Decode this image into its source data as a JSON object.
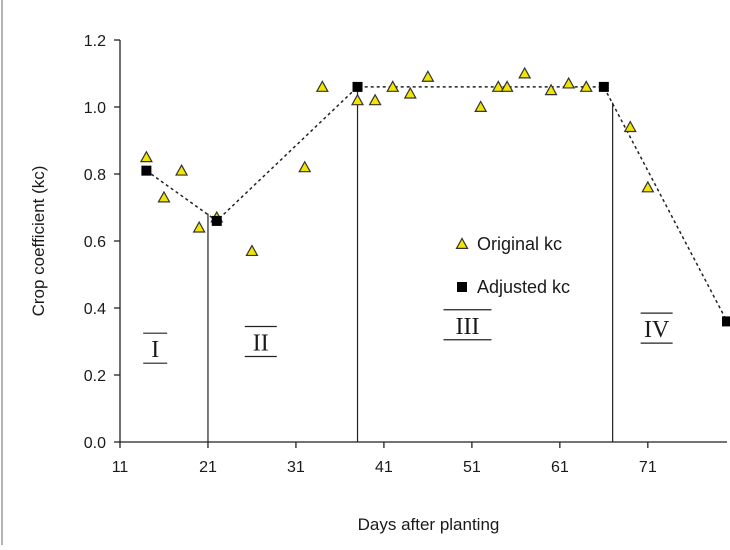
{
  "chart_data": {
    "type": "scatter",
    "title": "",
    "xlabel": "Days after planting",
    "ylabel": "Crop coefficient (kc)",
    "xlim": [
      11,
      80
    ],
    "ylim": [
      0,
      1.2
    ],
    "x_ticks": [
      11,
      21,
      31,
      41,
      51,
      61,
      71
    ],
    "x_tick_labels": [
      "11",
      "21",
      "31",
      "41",
      "51",
      "61",
      "71"
    ],
    "y_ticks": [
      0,
      0.2,
      0.4,
      0.6,
      0.8,
      1.0,
      1.2
    ],
    "y_tick_labels": [
      "0.0",
      "0.2",
      "0.4",
      "0.6",
      "0.8",
      "1.0",
      "1.2"
    ],
    "grid": false,
    "legend_position": "center-right",
    "series": [
      {
        "name": "Original kc",
        "marker": "triangle",
        "color": "#f2e600",
        "edge_color": "#333333",
        "points": [
          {
            "x": 14,
            "y": 0.85
          },
          {
            "x": 16,
            "y": 0.73
          },
          {
            "x": 18,
            "y": 0.81
          },
          {
            "x": 20,
            "y": 0.64
          },
          {
            "x": 22,
            "y": 0.67
          },
          {
            "x": 26,
            "y": 0.57
          },
          {
            "x": 32,
            "y": 0.82
          },
          {
            "x": 34,
            "y": 1.06
          },
          {
            "x": 38,
            "y": 1.02
          },
          {
            "x": 40,
            "y": 1.02
          },
          {
            "x": 42,
            "y": 1.06
          },
          {
            "x": 44,
            "y": 1.04
          },
          {
            "x": 46,
            "y": 1.09
          },
          {
            "x": 52,
            "y": 1.0
          },
          {
            "x": 54,
            "y": 1.06
          },
          {
            "x": 55,
            "y": 1.06
          },
          {
            "x": 57,
            "y": 1.1
          },
          {
            "x": 60,
            "y": 1.05
          },
          {
            "x": 62,
            "y": 1.07
          },
          {
            "x": 64,
            "y": 1.06
          },
          {
            "x": 69,
            "y": 0.94
          },
          {
            "x": 71,
            "y": 0.76
          }
        ]
      },
      {
        "name": "Adjusted kc",
        "marker": "square",
        "color": "#000000",
        "line": "dashed",
        "points": [
          {
            "x": 14,
            "y": 0.81
          },
          {
            "x": 22,
            "y": 0.66
          },
          {
            "x": 38,
            "y": 1.06
          },
          {
            "x": 66,
            "y": 1.06
          },
          {
            "x": 80,
            "y": 0.36
          }
        ]
      }
    ],
    "stage_boundaries": [
      21,
      38,
      67
    ],
    "stage_labels": [
      {
        "text": "I",
        "x": 15,
        "y": 0.28
      },
      {
        "text": "II",
        "x": 27,
        "y": 0.3
      },
      {
        "text": "III",
        "x": 50.5,
        "y": 0.35
      },
      {
        "text": "IV",
        "x": 72,
        "y": 0.34
      }
    ]
  }
}
